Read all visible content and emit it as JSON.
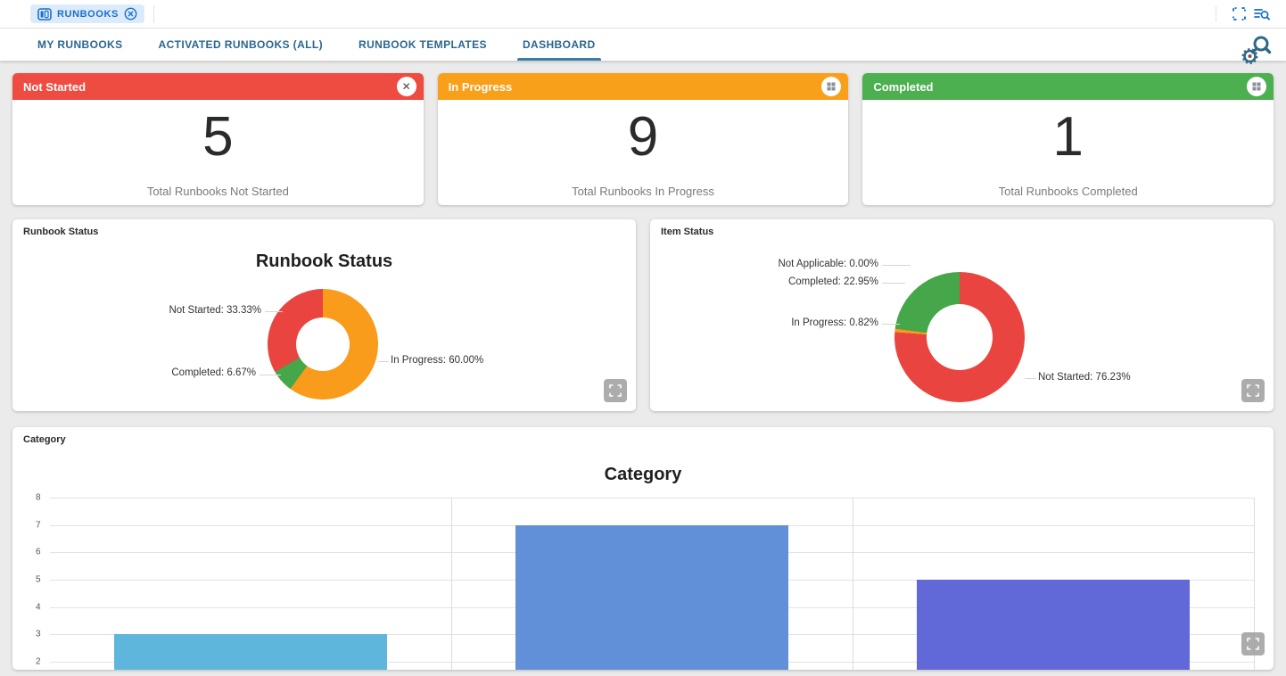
{
  "toolbar": {
    "chip_label": "RUNBOOKS"
  },
  "tabs": [
    {
      "label": "MY RUNBOOKS",
      "active": false
    },
    {
      "label": "ACTIVATED RUNBOOKS (ALL)",
      "active": false
    },
    {
      "label": "RUNBOOK TEMPLATES",
      "active": false
    },
    {
      "label": "DASHBOARD",
      "active": true
    }
  ],
  "colors": {
    "accent_blue": "#1a6fc9",
    "tab_text": "#2a6690",
    "tab_underline": "#3c7ea8",
    "status_red": "#EE4B41",
    "status_orange": "#F9A01B",
    "status_green": "#4CAF50"
  },
  "stat_cards": [
    {
      "title": "Not Started",
      "value": "5",
      "subtitle": "Total Runbooks Not Started",
      "color": "#EE4B41",
      "header_icon": "close"
    },
    {
      "title": "In Progress",
      "value": "9",
      "subtitle": "Total Runbooks In Progress",
      "color": "#F9A01B",
      "header_icon": "grid"
    },
    {
      "title": "Completed",
      "value": "1",
      "subtitle": "Total Runbooks Completed",
      "color": "#4CAF50",
      "header_icon": "grid"
    }
  ],
  "chart_data": [
    {
      "type": "pie",
      "donut": true,
      "card_label": "Runbook Status",
      "title": "Runbook Status",
      "start_angle_deg": 0,
      "legend": "callout-labels",
      "slices": [
        {
          "label": "In Progress",
          "value": 60.0,
          "color": "#F99B1B",
          "text": "In Progress: 60.00%"
        },
        {
          "label": "Completed",
          "value": 6.67,
          "color": "#46A64A",
          "text": "Completed: 6.67%"
        },
        {
          "label": "Not Started",
          "value": 33.33,
          "color": "#EA4440",
          "text": "Not Started: 33.33%"
        }
      ]
    },
    {
      "type": "pie",
      "donut": true,
      "card_label": "Item Status",
      "title": "",
      "start_angle_deg": 0,
      "legend": "callout-labels",
      "slices": [
        {
          "label": "Not Started",
          "value": 76.23,
          "color": "#EA4440",
          "text": "Not Started: 76.23%"
        },
        {
          "label": "In Progress",
          "value": 0.82,
          "color": "#F99B1B",
          "text": "In Progress: 0.82%"
        },
        {
          "label": "Completed",
          "value": 22.95,
          "color": "#46A64A",
          "text": "Completed: 22.95%"
        },
        {
          "label": "Not Applicable",
          "value": 0.0,
          "color": "#9E9E9E",
          "text": "Not Applicable: 0.00%"
        }
      ]
    },
    {
      "type": "bar",
      "card_label": "Category",
      "title": "Category",
      "values": [
        3,
        7,
        5
      ],
      "colors": [
        "#5FB6DC",
        "#6190D8",
        "#6168D8"
      ],
      "ylim_visible": [
        2,
        8
      ],
      "yticks": [
        8,
        7,
        6,
        5,
        4,
        3,
        2
      ],
      "x_gridlines": [
        0.3333,
        0.6667,
        1.0
      ],
      "grid": true,
      "xlabel": "",
      "ylabel": "",
      "note": "chart bottom and x-axis category labels clipped by card edge"
    }
  ]
}
